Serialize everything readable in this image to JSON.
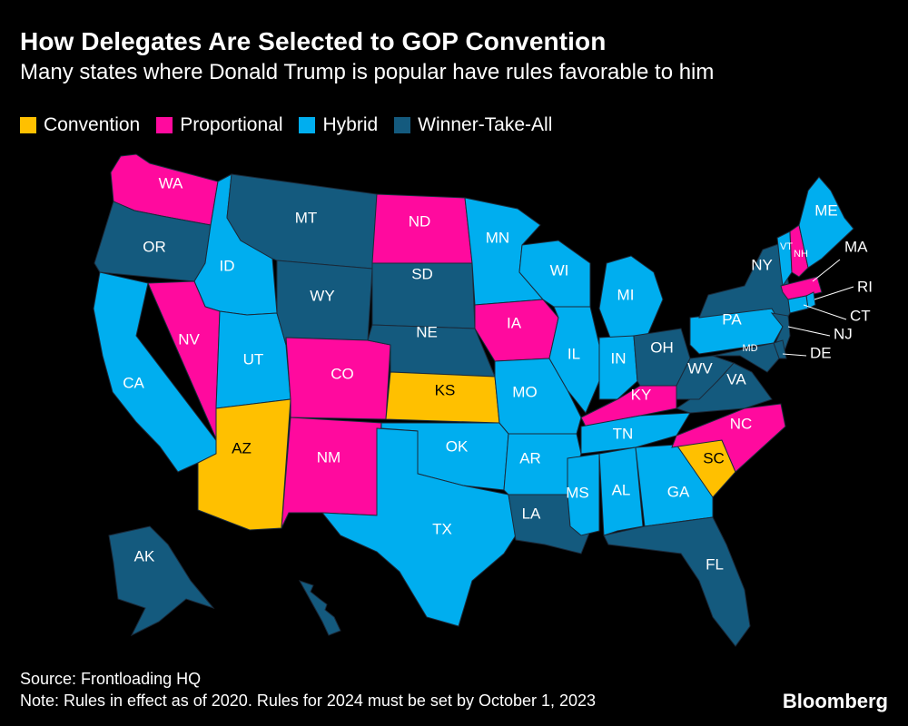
{
  "header": {
    "title": "How Delegates Are Selected to GOP Convention",
    "subtitle": "Many states where Donald Trump is popular have rules favorable to him"
  },
  "legend": [
    {
      "key": "convention",
      "label": "Convention",
      "color": "#FFC000"
    },
    {
      "key": "proportional",
      "label": "Proportional",
      "color": "#FF0A9E"
    },
    {
      "key": "hybrid",
      "label": "Hybrid",
      "color": "#00AEEF"
    },
    {
      "key": "winner_take_all",
      "label": "Winner-Take-All",
      "color": "#145A7E"
    }
  ],
  "states": [
    {
      "code": "WA",
      "category": "proportional"
    },
    {
      "code": "OR",
      "category": "winner_take_all"
    },
    {
      "code": "CA",
      "category": "hybrid"
    },
    {
      "code": "ID",
      "category": "hybrid"
    },
    {
      "code": "NV",
      "category": "proportional"
    },
    {
      "code": "UT",
      "category": "hybrid"
    },
    {
      "code": "AZ",
      "category": "convention"
    },
    {
      "code": "MT",
      "category": "winner_take_all"
    },
    {
      "code": "WY",
      "category": "winner_take_all"
    },
    {
      "code": "CO",
      "category": "proportional"
    },
    {
      "code": "NM",
      "category": "proportional"
    },
    {
      "code": "ND",
      "category": "proportional"
    },
    {
      "code": "SD",
      "category": "winner_take_all"
    },
    {
      "code": "NE",
      "category": "winner_take_all"
    },
    {
      "code": "KS",
      "category": "convention"
    },
    {
      "code": "OK",
      "category": "hybrid"
    },
    {
      "code": "TX",
      "category": "hybrid"
    },
    {
      "code": "MN",
      "category": "hybrid"
    },
    {
      "code": "IA",
      "category": "proportional"
    },
    {
      "code": "MO",
      "category": "hybrid"
    },
    {
      "code": "AR",
      "category": "hybrid"
    },
    {
      "code": "LA",
      "category": "winner_take_all"
    },
    {
      "code": "WI",
      "category": "hybrid"
    },
    {
      "code": "IL",
      "category": "hybrid"
    },
    {
      "code": "MS",
      "category": "hybrid"
    },
    {
      "code": "MI",
      "category": "hybrid"
    },
    {
      "code": "IN",
      "category": "hybrid"
    },
    {
      "code": "OH",
      "category": "winner_take_all"
    },
    {
      "code": "KY",
      "category": "proportional"
    },
    {
      "code": "TN",
      "category": "hybrid"
    },
    {
      "code": "AL",
      "category": "hybrid"
    },
    {
      "code": "GA",
      "category": "hybrid"
    },
    {
      "code": "FL",
      "category": "winner_take_all"
    },
    {
      "code": "SC",
      "category": "convention"
    },
    {
      "code": "NC",
      "category": "proportional"
    },
    {
      "code": "VA",
      "category": "winner_take_all"
    },
    {
      "code": "WV",
      "category": "winner_take_all"
    },
    {
      "code": "PA",
      "category": "hybrid"
    },
    {
      "code": "NY",
      "category": "winner_take_all"
    },
    {
      "code": "VT",
      "category": "hybrid"
    },
    {
      "code": "NH",
      "category": "proportional"
    },
    {
      "code": "ME",
      "category": "hybrid"
    },
    {
      "code": "MA",
      "category": "proportional"
    },
    {
      "code": "RI",
      "category": "hybrid"
    },
    {
      "code": "CT",
      "category": "hybrid"
    },
    {
      "code": "NJ",
      "category": "winner_take_all"
    },
    {
      "code": "DE",
      "category": "winner_take_all"
    },
    {
      "code": "MD",
      "category": "winner_take_all"
    },
    {
      "code": "AK",
      "category": "winner_take_all"
    },
    {
      "code": "HI",
      "category": "winner_take_all"
    }
  ],
  "footer": {
    "source": "Source: Frontloading HQ",
    "note": "Note: Rules in effect as of 2020. Rules for 2024 must be set by October 1, 2023",
    "brand": "Bloomberg"
  }
}
